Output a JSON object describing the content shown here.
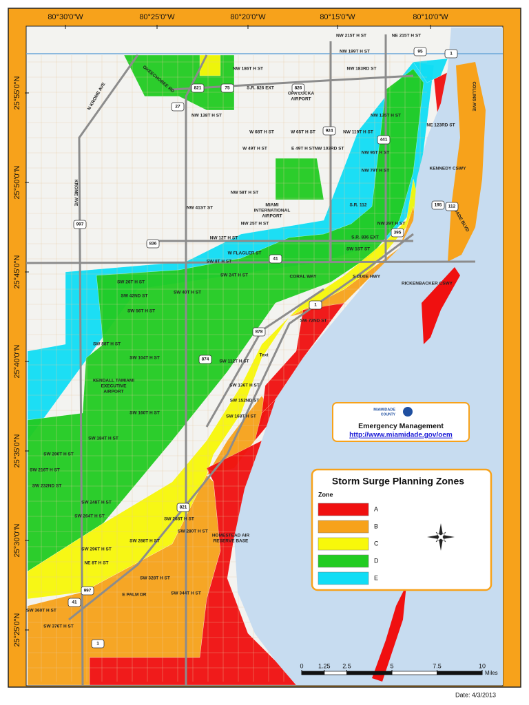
{
  "frame": {
    "lon_labels": [
      "80°30'0\"W",
      "80°25'0\"W",
      "80°20'0\"W",
      "80°15'0\"W",
      "80°10'0\"W"
    ],
    "lat_labels": [
      "25°55'0\"N",
      "25°50'0\"N",
      "25°45'0\"N",
      "25°40'0\"N",
      "25°35'0\"N",
      "25°30'0\"N",
      "25°25'0\"N"
    ]
  },
  "map": {
    "streets": [
      "NW 215T H ST",
      "NE 215T H ST",
      "NW 199T H ST",
      "NW 186T H ST",
      "NW 183RD ST",
      "S.R. 826 EXT",
      "NW 138T H ST",
      "NW 135T H ST",
      "NE 123RD ST",
      "W 68T H ST",
      "W 65T H ST",
      "NW 119T H ST",
      "W 49T H ST",
      "E 49T H ST",
      "NW 103RD ST",
      "NW 95T H ST",
      "NW 79T H ST",
      "KENNEDY CSWY",
      "NW 58T H ST",
      "NW 41ST ST",
      "S.R. 112",
      "NW 25T H ST",
      "NW 29T H ST",
      "NW 12T H ST",
      "S.R. 836 EXT",
      "W FLAGLER ST",
      "SW 8T H ST",
      "SW 1ST ST",
      "SW 26T H ST",
      "SW 24T H ST",
      "CORAL WAY",
      "S DIXIE HWY",
      "RICKENBACKER CSWY",
      "SW 42ND ST",
      "SW 40T H ST",
      "SW 56T H ST",
      "SW 72ND ST",
      "SW 88T H ST",
      "SW 104T H ST",
      "SW 112T H ST",
      "Text",
      "SW 136T H ST",
      "SW 152ND ST",
      "SW 160T H ST",
      "SW 168T H ST",
      "SW 184T H ST",
      "SW 200T H ST",
      "SW 216T H ST",
      "SW 232ND ST",
      "SW 248T H ST",
      "SW 264T H ST",
      "SW 268T H ST",
      "SW 280T H ST",
      "SW 288T H ST",
      "SW 296T H ST",
      "NE 8T H ST",
      "SW 328T H ST",
      "SW 344T H ST",
      "E PALM DR",
      "SW 360T H ST",
      "SW 376T H ST",
      "KROME AVE",
      "N KROME AVE",
      "OKEECHOBEE RD",
      "COLLINS AVE",
      "DADE BLVD"
    ],
    "places": [
      [
        "OPA LOCKA",
        "AIRPORT"
      ],
      [
        "MIAMI",
        "INTERNATIONAL",
        "AIRPORT"
      ],
      [
        "KENDALL TAMIAMI",
        "EXECUTIVE",
        "AIRPORT"
      ],
      [
        "HOMESTEAD AIR",
        "RESERVE BASE"
      ]
    ],
    "shields": [
      "821",
      "27",
      "75",
      "826",
      "924",
      "441",
      "95",
      "1",
      "195",
      "112",
      "997",
      "836",
      "41",
      "874",
      "878",
      "1",
      "395",
      "821",
      "997",
      "41",
      "1"
    ]
  },
  "logo": {
    "org": [
      "MIAMIDADE",
      "COUNTY"
    ],
    "name": "Emergency Management",
    "url": "http://www.miamidade.gov/oem"
  },
  "legend": {
    "title": "Storm Surge Planning Zones",
    "zone_label": "Zone",
    "zones": [
      {
        "label": "A",
        "color": "#f01010"
      },
      {
        "label": "B",
        "color": "#f7a21b"
      },
      {
        "label": "C",
        "color": "#f8f80a"
      },
      {
        "label": "D",
        "color": "#22cc22"
      },
      {
        "label": "E",
        "color": "#11ddf5"
      }
    ]
  },
  "scale": {
    "ticks": [
      0,
      1.25,
      2.5,
      5,
      7.5,
      10
    ],
    "unit": "Miles"
  },
  "date": "Date: 4/3/2013"
}
